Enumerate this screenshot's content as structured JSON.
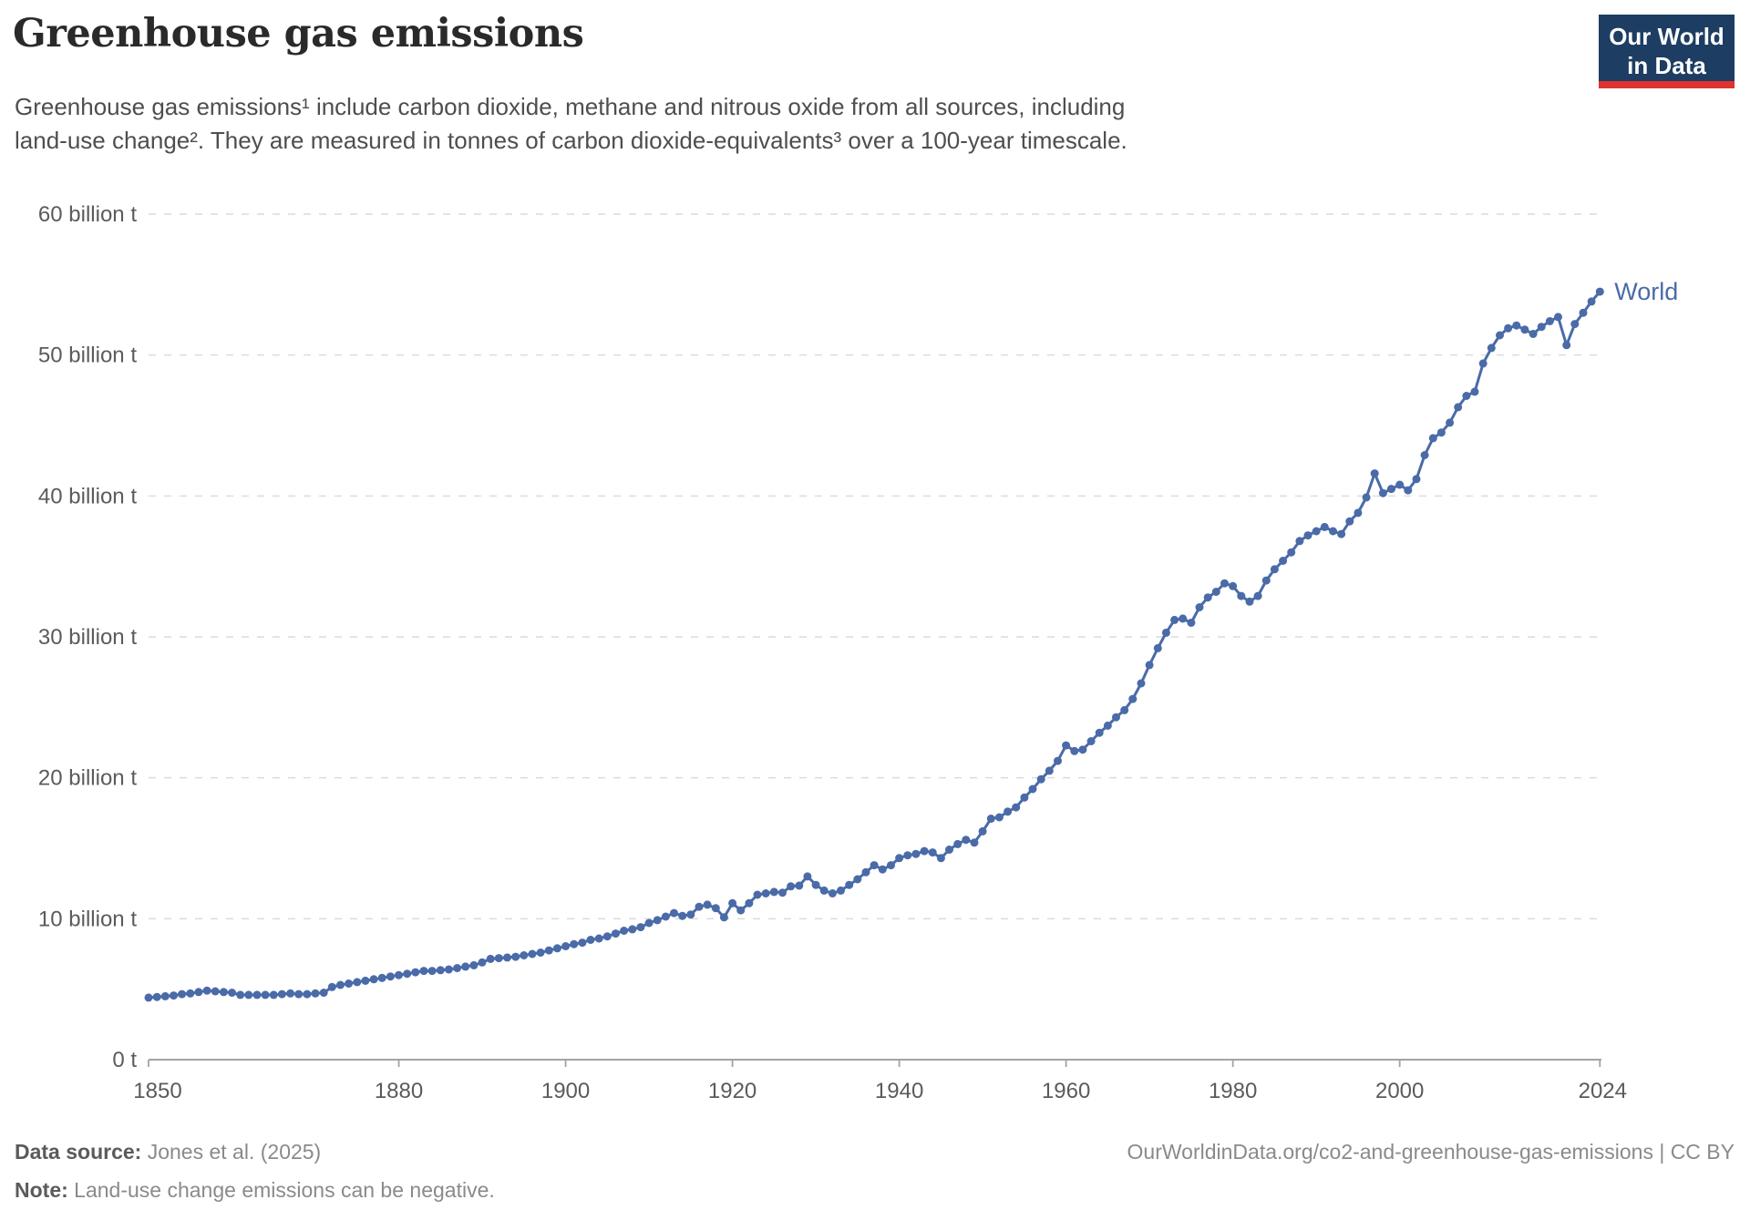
{
  "header": {
    "title": "Greenhouse gas emissions",
    "subtitle_line1": "Greenhouse gas emissions¹ include carbon dioxide, methane and nitrous oxide from all sources, including",
    "subtitle_line2": "land-use change². They are measured in tonnes of carbon dioxide-equivalents³ over a 100-year timescale.",
    "logo": {
      "line1": "Our World",
      "line2": "in Data",
      "bg_color": "#1d3d63",
      "bar_color": "#e0322e",
      "text_color": "#ffffff"
    }
  },
  "chart_data": {
    "type": "line",
    "title": "Greenhouse gas emissions",
    "xlabel": "",
    "ylabel": "",
    "units": "tonnes of carbon dioxide-equivalents",
    "x_range": [
      1850,
      2024
    ],
    "ylim": [
      0,
      60
    ],
    "grid": "dashed-horizontal",
    "legend_position": "end-of-line-label",
    "x_ticks": [
      1850,
      1880,
      1900,
      1920,
      1940,
      1960,
      1980,
      2000,
      2024
    ],
    "y_ticks": [
      {
        "value": 0,
        "label": "0 t"
      },
      {
        "value": 10,
        "label": "10 billion t"
      },
      {
        "value": 20,
        "label": "20 billion t"
      },
      {
        "value": 30,
        "label": "30 billion t"
      },
      {
        "value": 40,
        "label": "40 billion t"
      },
      {
        "value": 50,
        "label": "50 billion t"
      },
      {
        "value": 60,
        "label": "60 billion t"
      }
    ],
    "series": [
      {
        "name": "World",
        "color": "#4a6ba8",
        "x_start": 1850,
        "x_step": 1,
        "values": [
          4.4,
          4.45,
          4.5,
          4.55,
          4.65,
          4.7,
          4.8,
          4.9,
          4.85,
          4.8,
          4.75,
          4.6,
          4.6,
          4.6,
          4.6,
          4.6,
          4.65,
          4.7,
          4.65,
          4.65,
          4.7,
          4.75,
          5.15,
          5.3,
          5.4,
          5.5,
          5.6,
          5.7,
          5.8,
          5.9,
          6.0,
          6.1,
          6.2,
          6.3,
          6.3,
          6.35,
          6.4,
          6.5,
          6.6,
          6.7,
          6.9,
          7.15,
          7.2,
          7.25,
          7.3,
          7.4,
          7.5,
          7.6,
          7.75,
          7.9,
          8.05,
          8.2,
          8.3,
          8.5,
          8.6,
          8.75,
          8.95,
          9.15,
          9.25,
          9.4,
          9.7,
          9.9,
          10.15,
          10.4,
          10.2,
          10.3,
          10.85,
          11.0,
          10.75,
          10.1,
          11.1,
          10.6,
          11.1,
          11.7,
          11.8,
          11.9,
          11.85,
          12.3,
          12.35,
          13.0,
          12.4,
          12.0,
          11.8,
          12.0,
          12.4,
          12.8,
          13.3,
          13.8,
          13.5,
          13.8,
          14.3,
          14.5,
          14.6,
          14.8,
          14.7,
          14.3,
          14.9,
          15.3,
          15.6,
          15.4,
          16.2,
          17.1,
          17.2,
          17.6,
          17.9,
          18.6,
          19.2,
          19.9,
          20.5,
          21.2,
          22.3,
          21.9,
          22.0,
          22.6,
          23.2,
          23.7,
          24.3,
          24.8,
          25.6,
          26.7,
          28.0,
          29.2,
          30.3,
          31.2,
          31.3,
          31.0,
          32.1,
          32.8,
          33.2,
          33.8,
          33.6,
          32.9,
          32.5,
          32.9,
          34.0,
          34.8,
          35.4,
          36.0,
          36.8,
          37.2,
          37.5,
          37.8,
          37.5,
          37.3,
          38.2,
          38.8,
          39.9,
          41.6,
          40.2,
          40.5,
          40.8,
          40.4,
          41.2,
          42.9,
          44.1,
          44.5,
          45.2,
          46.3,
          47.1,
          47.4,
          49.4,
          50.5,
          51.4,
          51.9,
          52.1,
          51.8,
          51.5,
          52.0,
          52.4,
          52.7,
          50.7,
          52.2,
          53.0,
          53.8,
          54.5
        ]
      }
    ]
  },
  "footer": {
    "datasource_label": "Data source:",
    "datasource_value": "Jones et al. (2025)",
    "note_label": "Note:",
    "note_value": "Land-use change emissions can be negative.",
    "url_credit": "OurWorldinData.org/co2-and-greenhouse-gas-emissions | CC BY"
  }
}
